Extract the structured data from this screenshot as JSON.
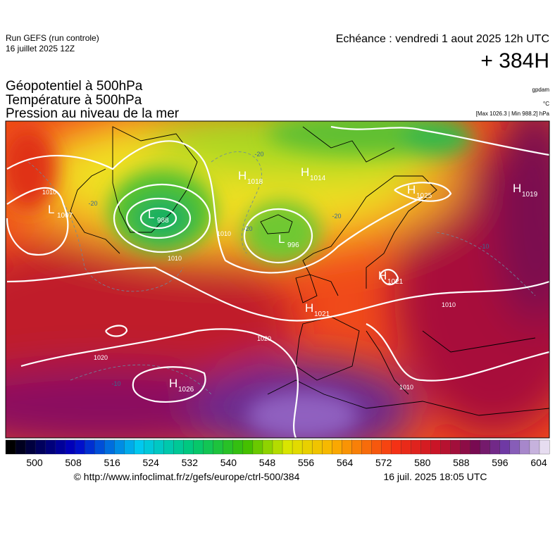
{
  "header": {
    "run": "Run GEFS (run controle)",
    "run_date": "16 juillet 2025 12Z",
    "echeance": "Echéance : vendredi 1 aout 2025 12h UTC",
    "lead": "+ 384H",
    "fields": [
      "Géopotentiel à 500hPa",
      "Température à 500hPa",
      "Pression au niveau de la mer"
    ],
    "units": [
      "gpdam",
      "°C",
      "[Max 1026.3 | Min 988.2] hPa"
    ]
  },
  "map": {
    "centers": [
      {
        "type": "H",
        "value": 1018
      },
      {
        "type": "H",
        "value": 1014
      },
      {
        "type": "L",
        "value": 988
      },
      {
        "type": "L",
        "value": 1007
      },
      {
        "type": "L",
        "value": 996
      },
      {
        "type": "H",
        "value": 1025
      },
      {
        "type": "H",
        "value": 1019
      },
      {
        "type": "H",
        "value": 1021
      },
      {
        "type": "H",
        "value": 1021
      },
      {
        "type": "H",
        "value": 1026
      }
    ],
    "isobar_labels": [
      1010,
      1010,
      1010,
      1020,
      1020,
      1010,
      1010
    ],
    "temperature_labels": [
      -20,
      -20,
      -20,
      -20,
      -10,
      -10
    ]
  },
  "scale": {
    "labels": [
      500,
      508,
      516,
      524,
      532,
      540,
      548,
      556,
      564,
      572,
      580,
      588,
      596,
      604
    ]
  },
  "footer": {
    "source": "© http://www.infoclimat.fr/z/gefs/europe/ctrl-500/384",
    "generated": "16 juil. 2025 18:05 UTC"
  }
}
